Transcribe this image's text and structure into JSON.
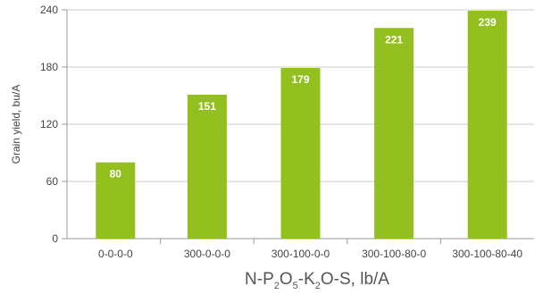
{
  "chart_data": {
    "type": "bar",
    "categories": [
      "0-0-0-0",
      "300-0-0-0",
      "300-100-0-0",
      "300-100-80-0",
      "300-100-80-40"
    ],
    "values": [
      80,
      151,
      179,
      221,
      239
    ],
    "data_labels": [
      "80",
      "151",
      "179",
      "221",
      "239"
    ],
    "ylabel": "Grain yield, bu/A",
    "xlabel_parts": [
      {
        "text": "N-P",
        "sub": false
      },
      {
        "text": "2",
        "sub": true
      },
      {
        "text": "O",
        "sub": false
      },
      {
        "text": "5",
        "sub": true
      },
      {
        "text": "-K",
        "sub": false
      },
      {
        "text": "2",
        "sub": true
      },
      {
        "text": "O-S, lb/A",
        "sub": false
      }
    ],
    "ylim": [
      0,
      240
    ],
    "yticks": [
      0,
      60,
      120,
      180,
      240
    ],
    "ytick_labels": [
      "0",
      "60",
      "120",
      "180",
      "240"
    ],
    "grid": true,
    "bar_color": "#93bf1f",
    "grid_color": "#cccccc"
  }
}
